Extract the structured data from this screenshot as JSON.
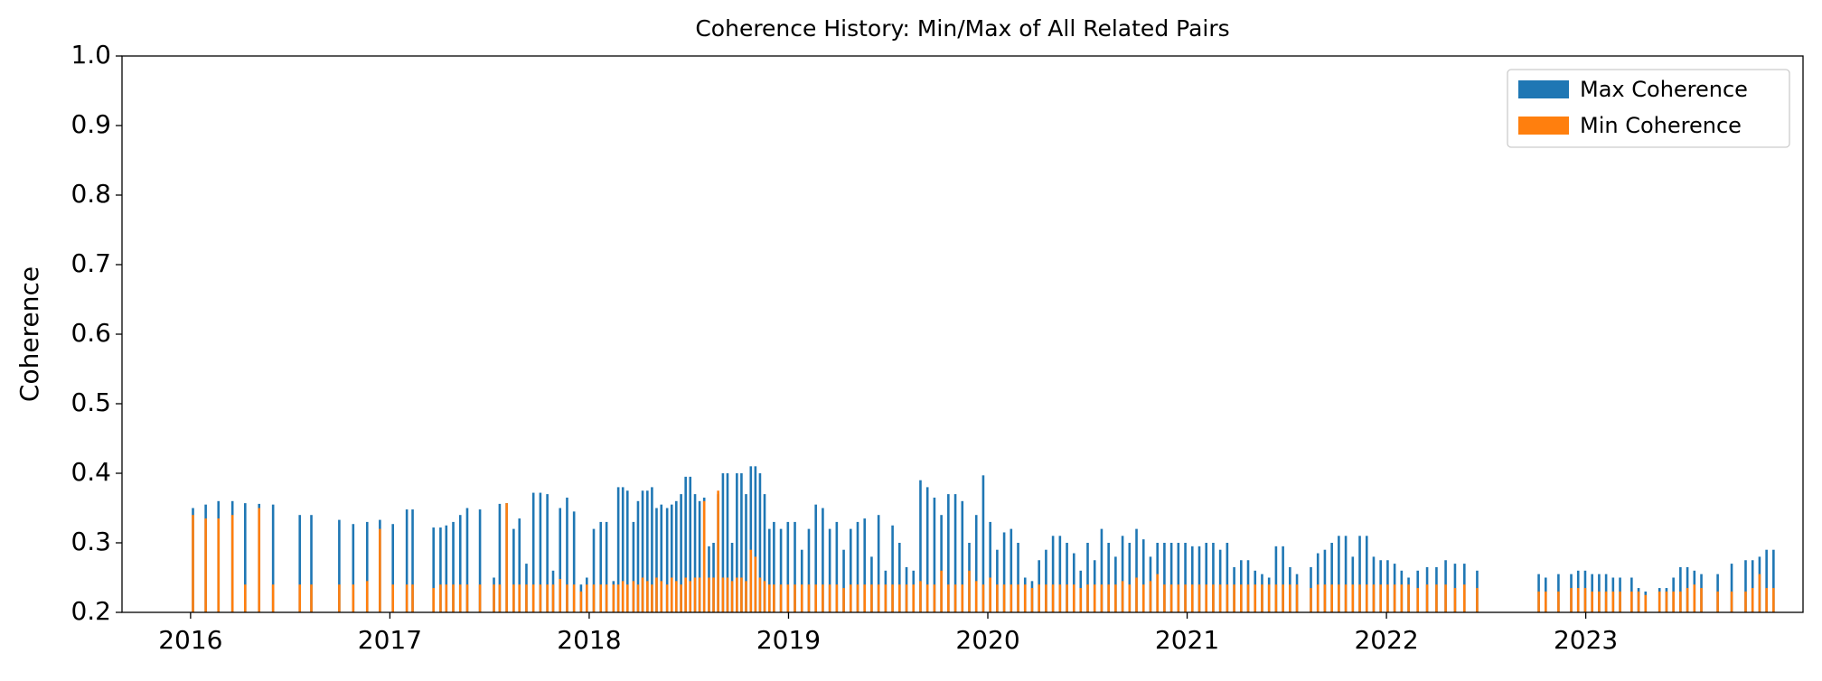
{
  "chart_data": {
    "type": "bar",
    "title": "Coherence History: Min/Max of All Related Pairs",
    "ylabel": "Coherence",
    "xlim": [
      2015.656,
      2024.09
    ],
    "xticks": [
      2016,
      2017,
      2018,
      2019,
      2020,
      2021,
      2022,
      2023
    ],
    "ylim": [
      0.2,
      1.0
    ],
    "yticks": [
      0.2,
      0.3,
      0.4,
      0.5,
      0.6,
      0.7,
      0.8,
      0.9,
      {
        "value": 1.0,
        "label": "1.0"
      }
    ],
    "legend": "upper right",
    "x": [
      2016.012,
      2016.076,
      2016.14,
      2016.21,
      2016.274,
      2016.344,
      2016.414,
      2016.548,
      2016.606,
      2016.746,
      2016.816,
      2016.886,
      2016.95,
      2017.015,
      2017.085,
      2017.114,
      2017.219,
      2017.254,
      2017.283,
      2017.318,
      2017.353,
      2017.388,
      2017.452,
      2017.522,
      2017.551,
      2017.586,
      2017.621,
      2017.65,
      2017.685,
      2017.72,
      2017.755,
      2017.79,
      2017.819,
      2017.854,
      2017.889,
      2017.924,
      2017.959,
      2017.988,
      2018.023,
      2018.058,
      2018.087,
      2018.122,
      2018.146,
      2018.169,
      2018.192,
      2018.222,
      2018.245,
      2018.268,
      2018.292,
      2018.315,
      2018.338,
      2018.362,
      2018.391,
      2018.414,
      2018.437,
      2018.461,
      2018.484,
      2018.507,
      2018.531,
      2018.554,
      2018.577,
      2018.601,
      2018.624,
      2018.647,
      2018.671,
      2018.694,
      2018.717,
      2018.741,
      2018.764,
      2018.787,
      2018.811,
      2018.834,
      2018.857,
      2018.88,
      2018.904,
      2018.927,
      2018.962,
      2018.997,
      2019.032,
      2019.067,
      2019.102,
      2019.137,
      2019.172,
      2019.207,
      2019.242,
      2019.277,
      2019.312,
      2019.347,
      2019.382,
      2019.417,
      2019.452,
      2019.487,
      2019.522,
      2019.557,
      2019.592,
      2019.627,
      2019.662,
      2019.697,
      2019.732,
      2019.767,
      2019.802,
      2019.837,
      2019.872,
      2019.907,
      2019.942,
      2019.977,
      2020.012,
      2020.047,
      2020.082,
      2020.117,
      2020.152,
      2020.187,
      2020.222,
      2020.257,
      2020.292,
      2020.327,
      2020.362,
      2020.397,
      2020.432,
      2020.466,
      2020.501,
      2020.536,
      2020.571,
      2020.606,
      2020.641,
      2020.676,
      2020.711,
      2020.746,
      2020.781,
      2020.816,
      2020.851,
      2020.886,
      2020.921,
      2020.956,
      2020.991,
      2021.026,
      2021.061,
      2021.096,
      2021.131,
      2021.166,
      2021.201,
      2021.236,
      2021.271,
      2021.306,
      2021.341,
      2021.376,
      2021.411,
      2021.446,
      2021.481,
      2021.516,
      2021.551,
      2021.621,
      2021.656,
      2021.691,
      2021.726,
      2021.761,
      2021.796,
      2021.831,
      2021.866,
      2021.901,
      2021.936,
      2021.971,
      2022.006,
      2022.041,
      2022.076,
      2022.111,
      2022.157,
      2022.204,
      2022.251,
      2022.297,
      2022.344,
      2022.391,
      2022.455,
      2022.764,
      2022.799,
      2022.863,
      2022.927,
      2022.962,
      2022.997,
      2023.032,
      2023.067,
      2023.102,
      2023.137,
      2023.172,
      2023.23,
      2023.265,
      2023.3,
      2023.37,
      2023.405,
      2023.44,
      2023.475,
      2023.51,
      2023.545,
      2023.58,
      2023.662,
      2023.732,
      2023.802,
      2023.837,
      2023.872,
      2023.907,
      2023.942
    ],
    "series": [
      {
        "name": "Max Coherence",
        "color": "#1f77b4",
        "values": [
          0.35,
          0.355,
          0.36,
          0.36,
          0.357,
          0.356,
          0.355,
          0.34,
          0.34,
          0.333,
          0.327,
          0.33,
          0.333,
          0.327,
          0.348,
          0.348,
          0.322,
          0.322,
          0.325,
          0.33,
          0.34,
          0.35,
          0.348,
          0.25,
          0.356,
          0.357,
          0.32,
          0.335,
          0.27,
          0.372,
          0.372,
          0.37,
          0.26,
          0.35,
          0.365,
          0.345,
          0.24,
          0.25,
          0.32,
          0.33,
          0.33,
          0.245,
          0.38,
          0.38,
          0.375,
          0.33,
          0.36,
          0.375,
          0.375,
          0.38,
          0.35,
          0.355,
          0.35,
          0.355,
          0.36,
          0.37,
          0.395,
          0.395,
          0.37,
          0.36,
          0.365,
          0.295,
          0.3,
          0.37,
          0.4,
          0.4,
          0.3,
          0.4,
          0.4,
          0.37,
          0.41,
          0.41,
          0.4,
          0.37,
          0.32,
          0.33,
          0.32,
          0.33,
          0.33,
          0.29,
          0.32,
          0.355,
          0.35,
          0.32,
          0.33,
          0.29,
          0.32,
          0.33,
          0.335,
          0.28,
          0.34,
          0.26,
          0.325,
          0.3,
          0.265,
          0.26,
          0.39,
          0.38,
          0.365,
          0.34,
          0.37,
          0.37,
          0.36,
          0.3,
          0.34,
          0.397,
          0.33,
          0.29,
          0.315,
          0.32,
          0.3,
          0.25,
          0.245,
          0.275,
          0.29,
          0.31,
          0.31,
          0.3,
          0.285,
          0.26,
          0.3,
          0.275,
          0.32,
          0.3,
          0.28,
          0.31,
          0.3,
          0.32,
          0.305,
          0.28,
          0.3,
          0.3,
          0.3,
          0.3,
          0.3,
          0.295,
          0.295,
          0.3,
          0.3,
          0.29,
          0.3,
          0.265,
          0.275,
          0.275,
          0.26,
          0.255,
          0.25,
          0.295,
          0.295,
          0.265,
          0.255,
          0.265,
          0.285,
          0.29,
          0.3,
          0.31,
          0.31,
          0.28,
          0.31,
          0.31,
          0.28,
          0.275,
          0.275,
          0.27,
          0.26,
          0.25,
          0.26,
          0.265,
          0.265,
          0.275,
          0.27,
          0.27,
          0.26,
          0.255,
          0.25,
          0.255,
          0.255,
          0.26,
          0.26,
          0.255,
          0.255,
          0.255,
          0.25,
          0.25,
          0.25,
          0.235,
          0.23,
          0.235,
          0.235,
          0.25,
          0.265,
          0.265,
          0.26,
          0.255,
          0.255,
          0.27,
          0.275,
          0.275,
          0.28,
          0.29,
          0.29
        ]
      },
      {
        "name": "Min Coherence",
        "color": "#ff7f0e",
        "values": [
          0.34,
          0.335,
          0.335,
          0.34,
          0.24,
          0.35,
          0.24,
          0.24,
          0.24,
          0.24,
          0.24,
          0.245,
          0.32,
          0.24,
          0.24,
          0.24,
          0.235,
          0.24,
          0.24,
          0.24,
          0.24,
          0.24,
          0.24,
          0.24,
          0.24,
          0.357,
          0.24,
          0.24,
          0.24,
          0.24,
          0.24,
          0.24,
          0.24,
          0.248,
          0.24,
          0.24,
          0.23,
          0.24,
          0.24,
          0.24,
          0.24,
          0.24,
          0.24,
          0.245,
          0.24,
          0.245,
          0.24,
          0.25,
          0.245,
          0.24,
          0.25,
          0.245,
          0.24,
          0.25,
          0.245,
          0.24,
          0.25,
          0.245,
          0.25,
          0.25,
          0.36,
          0.25,
          0.25,
          0.375,
          0.25,
          0.25,
          0.245,
          0.25,
          0.25,
          0.245,
          0.29,
          0.28,
          0.25,
          0.245,
          0.24,
          0.24,
          0.24,
          0.24,
          0.24,
          0.24,
          0.24,
          0.24,
          0.24,
          0.24,
          0.24,
          0.235,
          0.24,
          0.24,
          0.24,
          0.24,
          0.24,
          0.24,
          0.24,
          0.24,
          0.24,
          0.24,
          0.245,
          0.24,
          0.24,
          0.26,
          0.24,
          0.24,
          0.24,
          0.26,
          0.245,
          0.24,
          0.25,
          0.24,
          0.24,
          0.24,
          0.24,
          0.24,
          0.235,
          0.24,
          0.24,
          0.24,
          0.24,
          0.24,
          0.24,
          0.235,
          0.24,
          0.24,
          0.24,
          0.24,
          0.24,
          0.245,
          0.24,
          0.25,
          0.24,
          0.245,
          0.255,
          0.24,
          0.24,
          0.24,
          0.24,
          0.24,
          0.24,
          0.24,
          0.24,
          0.24,
          0.24,
          0.24,
          0.24,
          0.24,
          0.24,
          0.24,
          0.24,
          0.24,
          0.24,
          0.24,
          0.24,
          0.235,
          0.24,
          0.24,
          0.24,
          0.24,
          0.24,
          0.24,
          0.24,
          0.24,
          0.24,
          0.24,
          0.24,
          0.24,
          0.24,
          0.24,
          0.235,
          0.24,
          0.24,
          0.24,
          0.235,
          0.24,
          0.235,
          0.23,
          0.23,
          0.23,
          0.235,
          0.235,
          0.235,
          0.23,
          0.23,
          0.23,
          0.23,
          0.23,
          0.23,
          0.23,
          0.225,
          0.23,
          0.23,
          0.23,
          0.23,
          0.235,
          0.24,
          0.235,
          0.23,
          0.23,
          0.23,
          0.235,
          0.255,
          0.235,
          0.235
        ]
      }
    ]
  }
}
